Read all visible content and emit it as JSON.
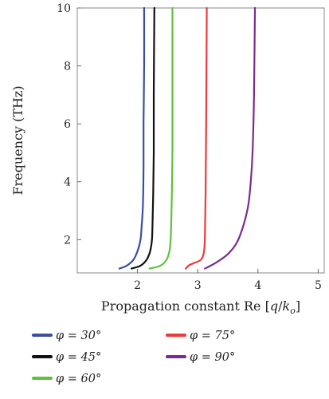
{
  "chart_data": {
    "type": "line",
    "xlabel": "Propagation constant Re [q/k_o]",
    "ylabel": "Frequency (THz)",
    "xlim": [
      1.0,
      5.1
    ],
    "ylim": [
      0.85,
      10.0
    ],
    "x_ticks": [
      2,
      3,
      4,
      5
    ],
    "y_ticks": [
      2,
      4,
      6,
      8,
      10
    ],
    "grid": false,
    "legend_position": "bottom",
    "series": [
      {
        "name": "φ = 30°",
        "color": "#3a4fa3",
        "points": [
          [
            1.7,
            1.0
          ],
          [
            1.82,
            1.1
          ],
          [
            1.93,
            1.3
          ],
          [
            2.0,
            1.6
          ],
          [
            2.05,
            2.0
          ],
          [
            2.07,
            2.5
          ],
          [
            2.09,
            3.2
          ],
          [
            2.1,
            4.5
          ],
          [
            2.1,
            6.0
          ],
          [
            2.11,
            8.0
          ],
          [
            2.11,
            10.0
          ]
        ]
      },
      {
        "name": "φ = 45°",
        "color": "#111111",
        "points": [
          [
            1.9,
            1.0
          ],
          [
            2.05,
            1.1
          ],
          [
            2.15,
            1.3
          ],
          [
            2.21,
            1.6
          ],
          [
            2.24,
            2.0
          ],
          [
            2.25,
            2.6
          ],
          [
            2.26,
            3.5
          ],
          [
            2.27,
            5.0
          ],
          [
            2.27,
            7.0
          ],
          [
            2.28,
            10.0
          ]
        ]
      },
      {
        "name": "φ = 60°",
        "color": "#5cc23e",
        "points": [
          [
            2.2,
            1.0
          ],
          [
            2.38,
            1.1
          ],
          [
            2.48,
            1.3
          ],
          [
            2.53,
            1.6
          ],
          [
            2.55,
            2.0
          ],
          [
            2.56,
            2.6
          ],
          [
            2.57,
            3.5
          ],
          [
            2.58,
            5.0
          ],
          [
            2.58,
            7.0
          ],
          [
            2.58,
            10.0
          ]
        ]
      },
      {
        "name": "φ = 75°",
        "color": "#ee3a3a",
        "points": [
          [
            2.8,
            1.0
          ],
          [
            2.86,
            1.12
          ],
          [
            2.95,
            1.2
          ],
          [
            3.05,
            1.3
          ],
          [
            3.09,
            1.45
          ],
          [
            3.11,
            1.7
          ],
          [
            3.12,
            2.2
          ],
          [
            3.13,
            3.5
          ],
          [
            3.14,
            6.0
          ],
          [
            3.15,
            10.0
          ]
        ]
      },
      {
        "name": "φ = 90°",
        "color": "#7a2d8e",
        "points": [
          [
            3.12,
            1.0
          ],
          [
            3.3,
            1.2
          ],
          [
            3.5,
            1.5
          ],
          [
            3.65,
            1.9
          ],
          [
            3.76,
            2.5
          ],
          [
            3.84,
            3.2
          ],
          [
            3.88,
            4.0
          ],
          [
            3.91,
            5.0
          ],
          [
            3.93,
            6.5
          ],
          [
            3.94,
            8.0
          ],
          [
            3.95,
            10.0
          ]
        ]
      }
    ]
  }
}
